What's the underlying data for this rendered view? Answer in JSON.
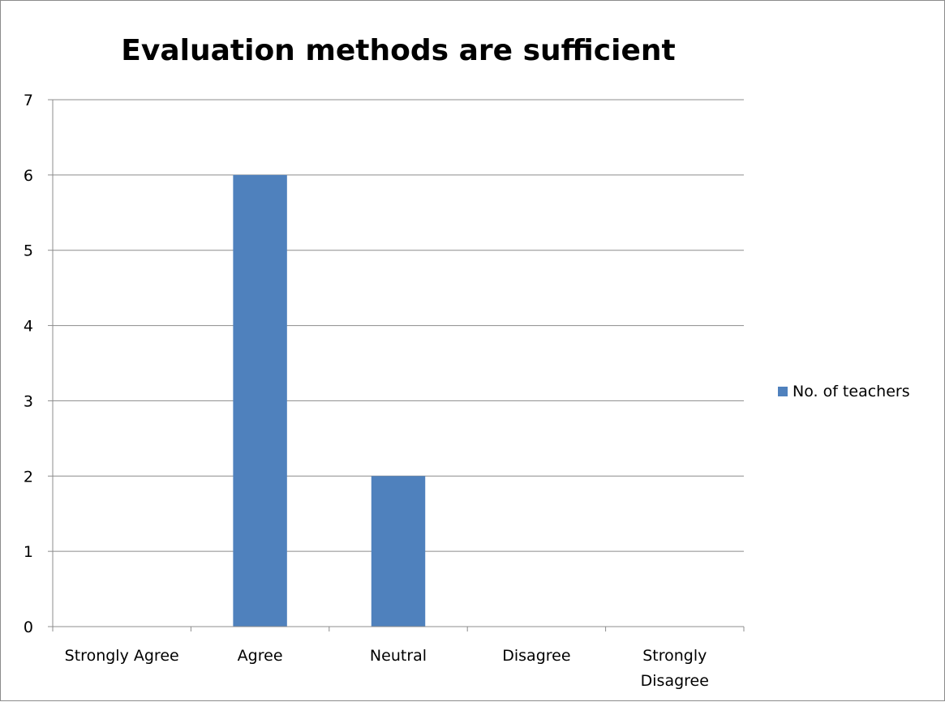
{
  "chart_data": {
    "type": "bar",
    "title": "Evaluation methods are sufficient",
    "categories": [
      "Strongly Agree",
      "Agree",
      "Neutral",
      "Disagree",
      "Strongly Disagree"
    ],
    "category_lines": [
      [
        "Strongly Agree"
      ],
      [
        "Agree"
      ],
      [
        "Neutral"
      ],
      [
        "Disagree"
      ],
      [
        "Strongly",
        "Disagree"
      ]
    ],
    "series": [
      {
        "name": "No. of teachers",
        "values": [
          0,
          6,
          2,
          0,
          0
        ],
        "color": "#4f81bd"
      }
    ],
    "ylim": [
      0,
      7
    ],
    "yticks": [
      0,
      1,
      2,
      3,
      4,
      5,
      6,
      7
    ],
    "grid": true,
    "legend_position": "right"
  }
}
